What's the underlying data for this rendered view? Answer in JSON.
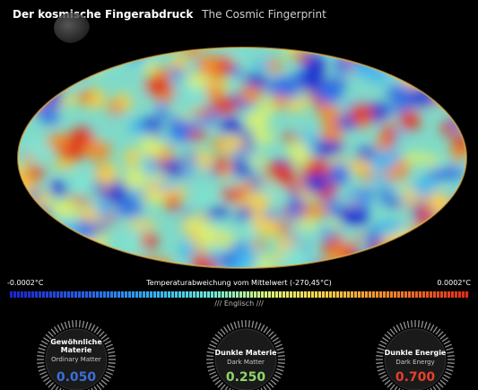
{
  "header": {
    "title_de": "Der kosmische Fingerabdruck",
    "title_en": "The Cosmic Fingerprint"
  },
  "scale": {
    "min_label": "-0.0002°C",
    "max_label": "0.0002°C",
    "caption": "Temperaturabweichung vom Mittelwert (-270,45°C)"
  },
  "language_toggle": "/// Englisch ///",
  "gauges": [
    {
      "title": "Gewöhnliche\nMaterie",
      "subtitle": "Ordinary Matter",
      "value": "0.050",
      "color": "#3a6fd8"
    },
    {
      "title": "Dunkle Materie",
      "subtitle": "Dark Matter",
      "value": "0.250",
      "color": "#8fd66a"
    },
    {
      "title": "Dunkle Energie",
      "subtitle": "Dark Energy",
      "value": "0.700",
      "color": "#e8402a"
    }
  ]
}
